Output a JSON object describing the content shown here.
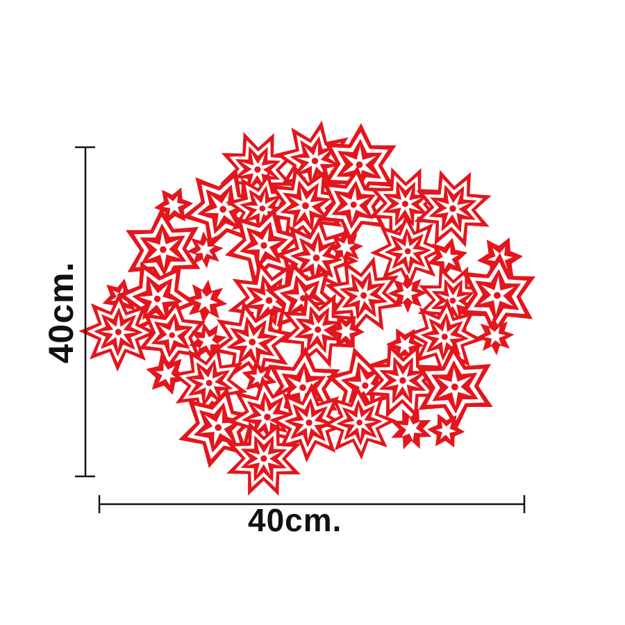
{
  "product": {
    "name_icon": "snowflake-felt-placemat",
    "color": "#e3161d",
    "shape": "round"
  },
  "dimensions": {
    "height_label": "40cm.",
    "width_label": "40cm.",
    "line_color": "#111111"
  }
}
